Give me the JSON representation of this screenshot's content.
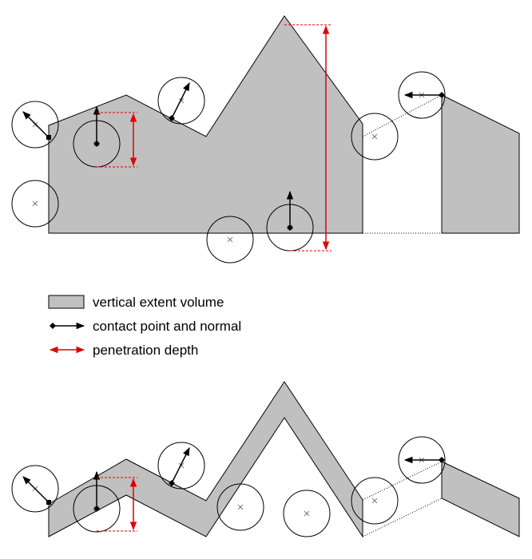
{
  "colors": {
    "volume_fill": "#c0c0c0",
    "outline": "#000000",
    "contact_normal": "#000000",
    "penetration": "#e00000",
    "background": "#ffffff"
  },
  "legend": {
    "volume_label": "vertical extent volume",
    "contact_label": "contact point and normal",
    "penetration_label": "penetration depth"
  },
  "icons": {
    "sphere_center": "x-mark-icon",
    "contact_point": "diamond-icon",
    "normal": "arrow-icon"
  }
}
